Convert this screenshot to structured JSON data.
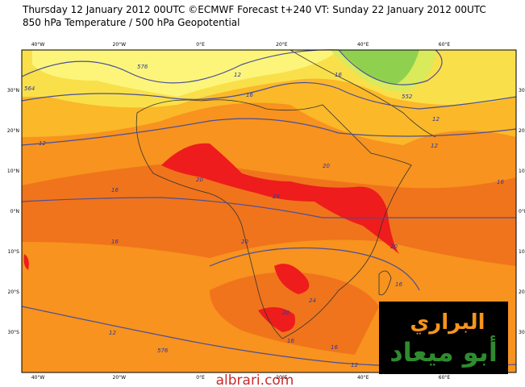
{
  "header": {
    "line1": "Thursday 12 January 2012 00UTC ©ECMWF Forecast t+240 VT: Sunday 22 January 2012 00UTC",
    "line2": "850 hPa Temperature / 500 hPa Geopotential"
  },
  "map": {
    "lon_labels": [
      "40°W",
      "20°W",
      "0°E",
      "20°E",
      "40°E",
      "60°E"
    ],
    "lat_labels": [
      "30°N",
      "20°N",
      "10°N",
      "0°N",
      "10°S",
      "20°S",
      "30°S"
    ],
    "contour_labels": [
      "576",
      "564",
      "12",
      "16",
      "12",
      "16",
      "552",
      "12",
      "12",
      "16",
      "20",
      "24",
      "20",
      "16",
      "20",
      "16",
      "20",
      "24",
      "20",
      "16",
      "12",
      "576",
      "16",
      "12",
      "16"
    ]
  },
  "logo": {
    "line1": "البراري",
    "line2": "أبو ميعاد"
  },
  "watermark": "albrari.com"
}
